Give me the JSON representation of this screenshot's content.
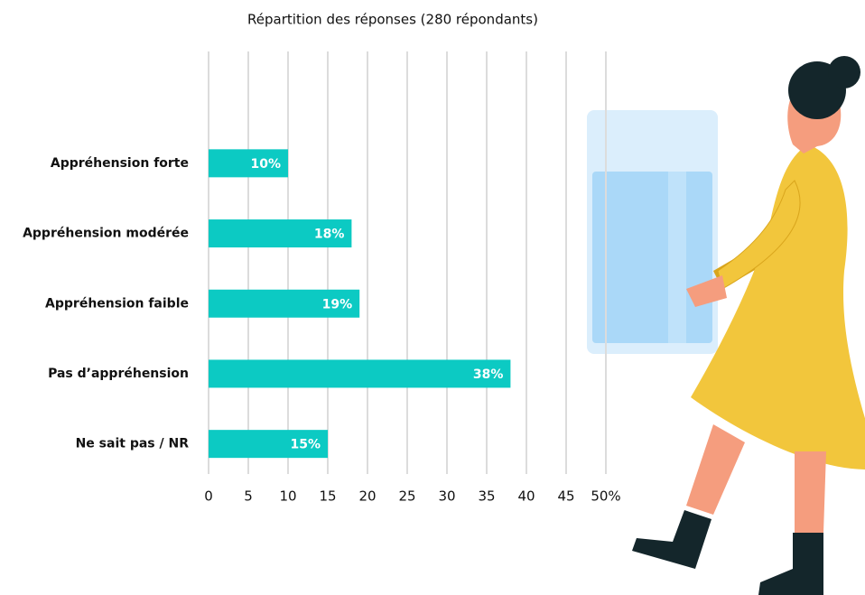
{
  "chart_data": {
    "type": "bar",
    "orientation": "horizontal",
    "title": "Répartition des réponses (280 répondants)",
    "categories": [
      "Appréhension forte",
      "Appréhension modérée",
      "Appréhension faible",
      "Pas d’appréhension",
      "Ne sait pas / NR"
    ],
    "values": [
      10,
      18,
      19,
      38,
      15
    ],
    "value_labels": [
      "10%",
      "18%",
      "19%",
      "38%",
      "15%"
    ],
    "color": "#0ccac3",
    "xlim": [
      0,
      50
    ],
    "xticks": [
      0,
      5,
      10,
      15,
      20,
      25,
      30,
      35,
      40,
      45,
      {
        "value": 50,
        "label": "50%"
      }
    ],
    "grid": true
  }
}
